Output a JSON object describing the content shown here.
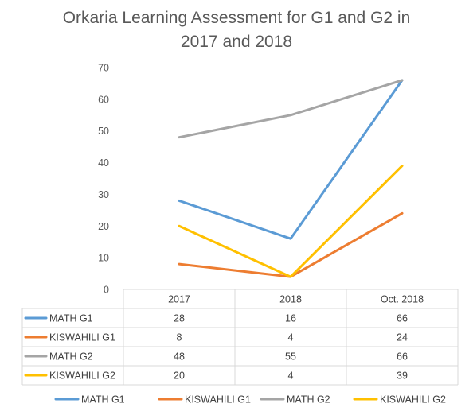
{
  "chart_data": {
    "type": "line",
    "title": "Orkaria Learning Assessment for G1 and G2 in 2017 and 2018",
    "title_lines": [
      "Orkaria Learning Assessment for G1 and G2 in",
      "2017 and 2018"
    ],
    "categories": [
      "2017",
      "2018",
      "Oct. 2018"
    ],
    "ylim": [
      0,
      70
    ],
    "yticks": [
      0,
      10,
      20,
      30,
      40,
      50,
      60,
      70
    ],
    "grid": false,
    "legend_position": "bottom",
    "data_table": true,
    "series": [
      {
        "name": "MATH G1",
        "values": [
          28,
          16,
          66
        ],
        "color": "#5B9BD5"
      },
      {
        "name": "KISWAHILI G1",
        "values": [
          8,
          4,
          24
        ],
        "color": "#ED7D31"
      },
      {
        "name": "MATH G2",
        "values": [
          48,
          55,
          66
        ],
        "color": "#A5A5A5"
      },
      {
        "name": "KISWAHILI G2",
        "values": [
          20,
          4,
          39
        ],
        "color": "#FFC000"
      }
    ]
  }
}
